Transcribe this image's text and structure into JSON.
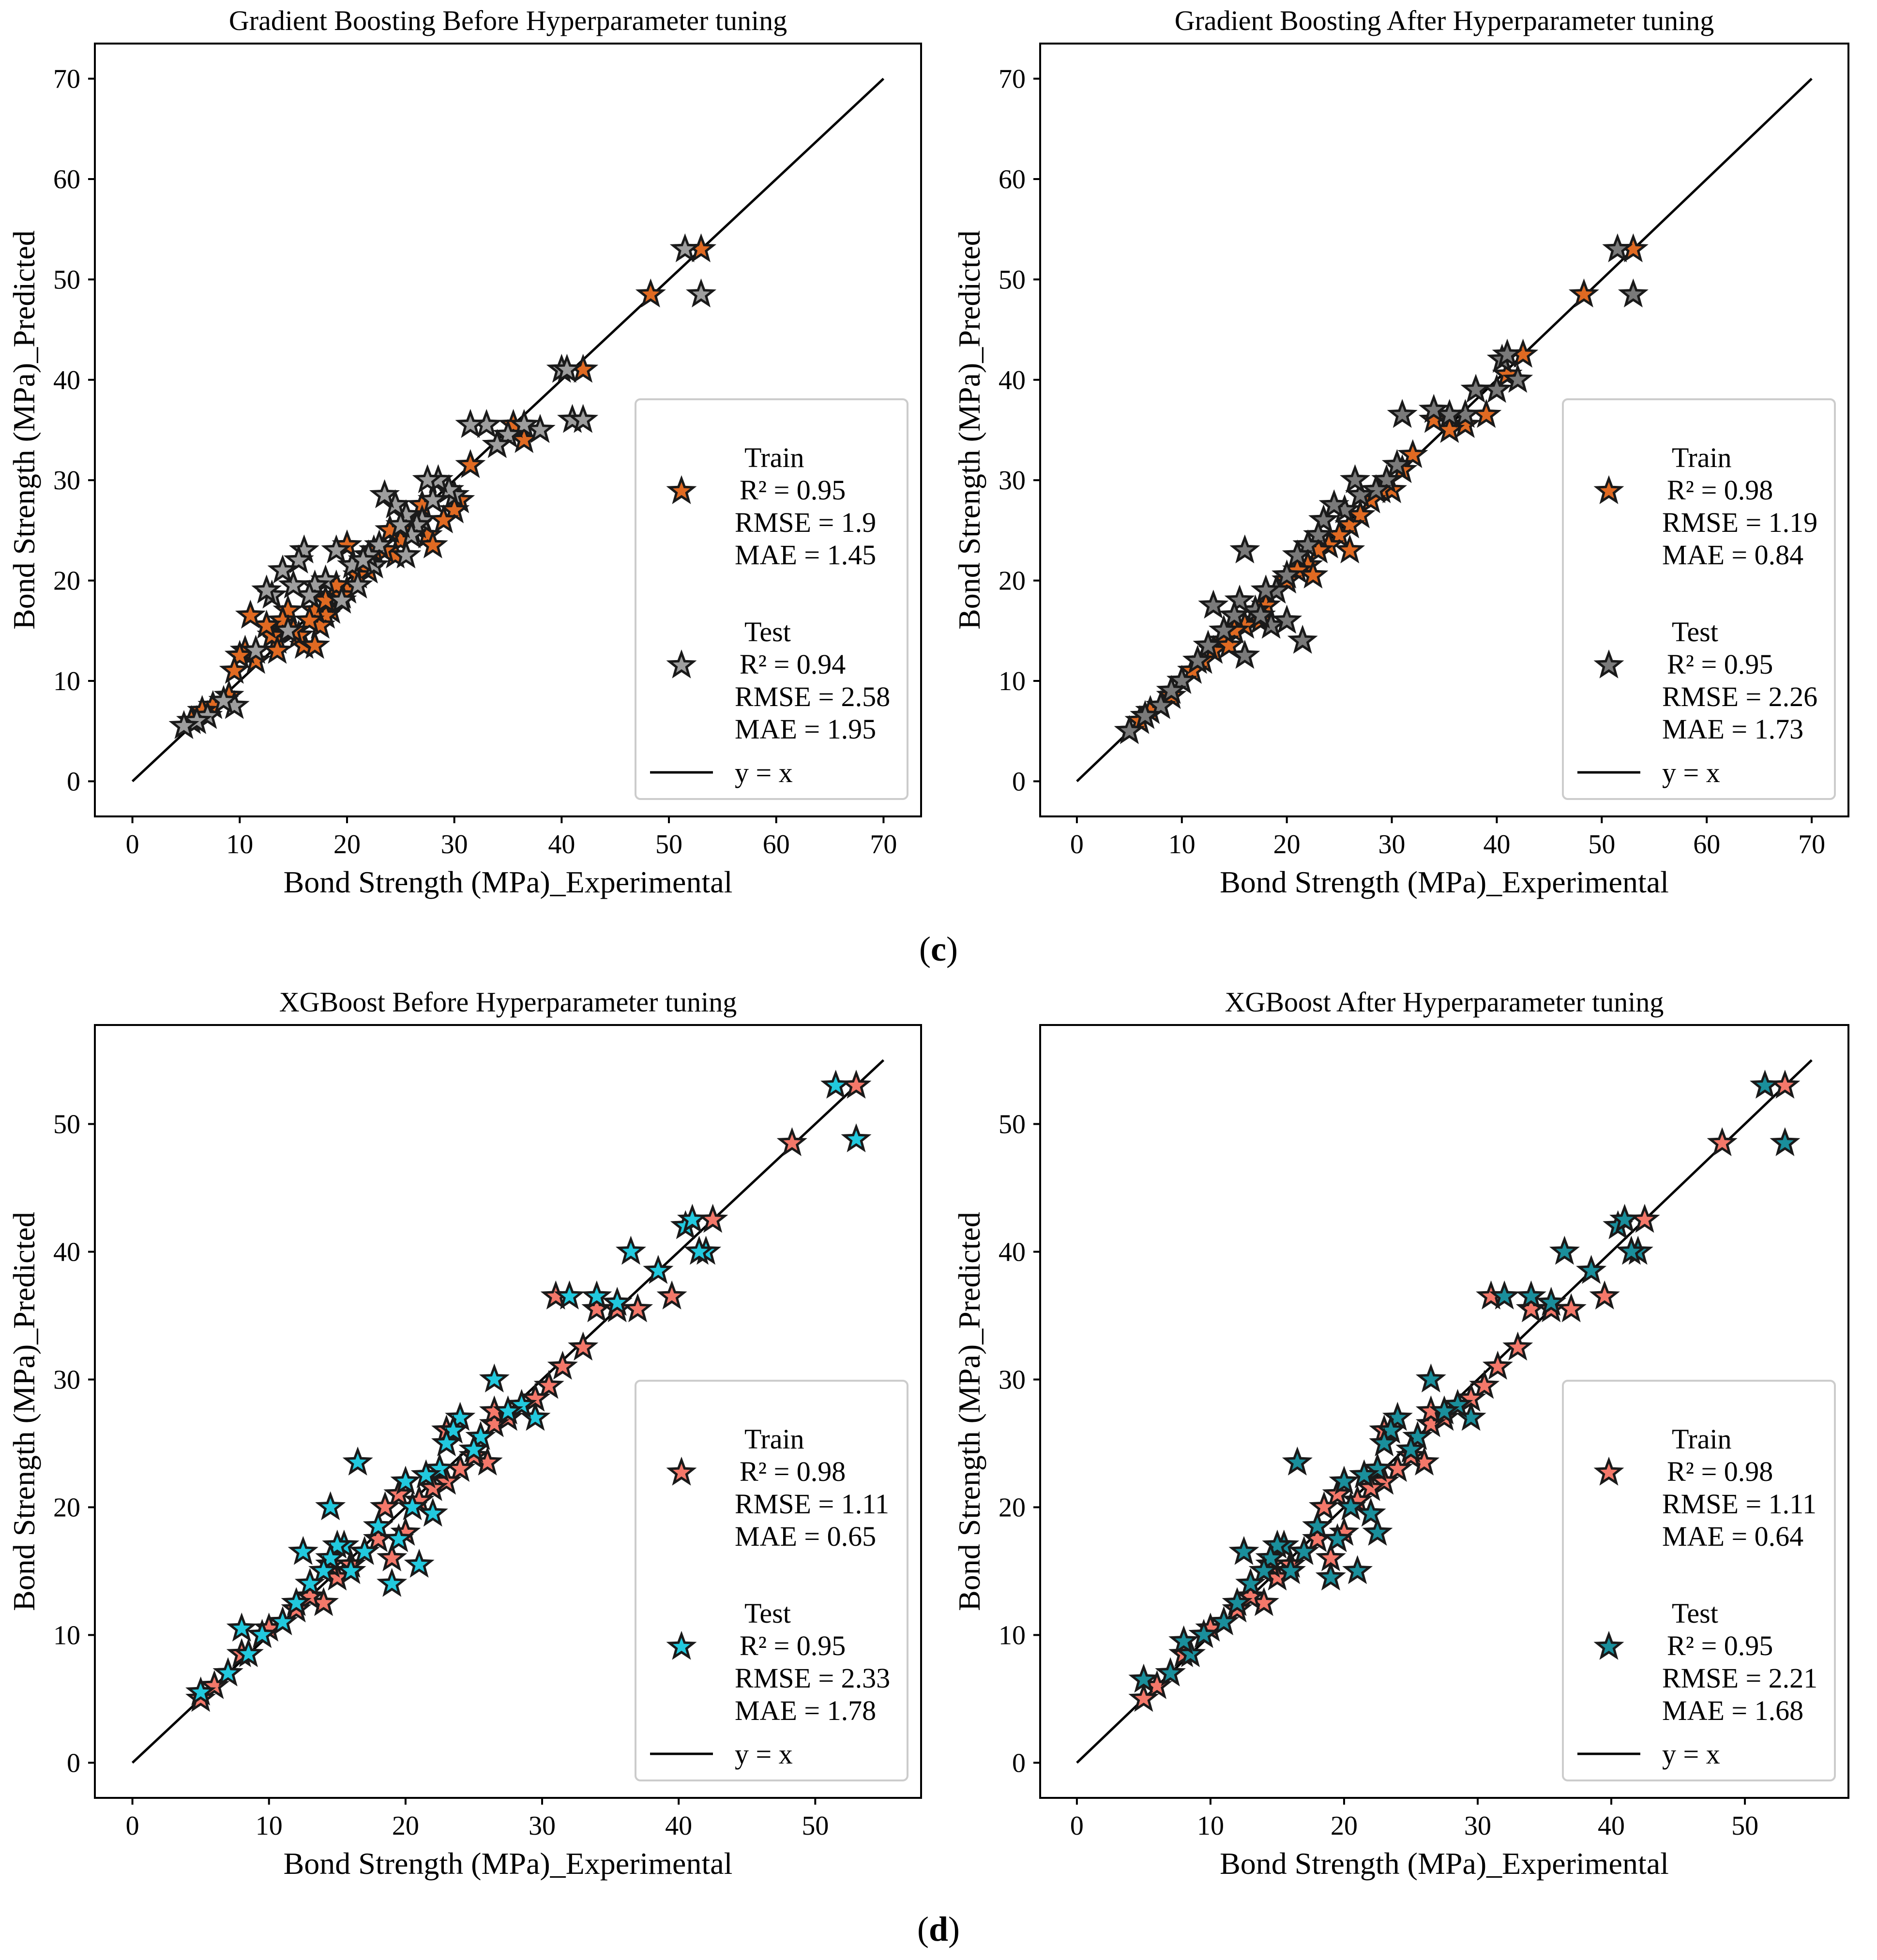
{
  "figure": {
    "captions": [
      {
        "open": "(",
        "letter": "c",
        "close": ")"
      },
      {
        "open": "(",
        "letter": "d",
        "close": ")"
      }
    ]
  },
  "chart_data": [
    {
      "type": "scatter",
      "title": "Gradient Boosting Before Hyperparameter tuning",
      "xlabel": "Bond Strength (MPa)_Experimental",
      "ylabel": "Bond Strength (MPa)_Predicted",
      "xlim": [
        -3.5,
        73.5
      ],
      "ylim": [
        -3.5,
        73.5
      ],
      "xticks": [
        0,
        10,
        20,
        30,
        40,
        50,
        60,
        70
      ],
      "yticks": [
        0,
        10,
        20,
        30,
        40,
        50,
        60,
        70
      ],
      "identity_line": {
        "from": 0,
        "to": 70,
        "label": "y = x"
      },
      "series": [
        {
          "name": "Train",
          "color": "#e06a22",
          "metrics": {
            "r2": "R² = 0.95",
            "rmse": "RMSE = 1.9",
            "mae": "MAE = 1.45"
          },
          "x": [
            48.3,
            53.0,
            42.0,
            38.0,
            36.5,
            35.5,
            34.0,
            31.5,
            30.5,
            30.0,
            29.0,
            27.5,
            27.0,
            26.0,
            25.0,
            24.5,
            23.5,
            22.5,
            22.0,
            21.0,
            20.5,
            20.0,
            19.5,
            19.0,
            18.5,
            18.0,
            17.5,
            17.0,
            16.5,
            16.0,
            15.5,
            15.0,
            14.5,
            14.0,
            13.5,
            13.0,
            12.5,
            11.5,
            11.0,
            10.5,
            10.0,
            9.5,
            9.0,
            7.5,
            6.5,
            5.5,
            28.0,
            24.0,
            17.0,
            13.5,
            20.0,
            18.0
          ],
          "y": [
            48.5,
            53.0,
            41.0,
            35.0,
            34.0,
            35.5,
            33.5,
            31.5,
            28.0,
            27.0,
            26.0,
            24.5,
            27.5,
            25.0,
            24.0,
            22.5,
            23.0,
            23.0,
            21.0,
            20.5,
            21.5,
            19.0,
            18.5,
            19.5,
            17.0,
            16.5,
            15.5,
            17.0,
            16.0,
            13.5,
            14.5,
            15.0,
            17.0,
            16.0,
            14.0,
            14.5,
            15.5,
            12.0,
            16.5,
            13.0,
            12.5,
            11.0,
            8.5,
            7.5,
            7.0,
            6.0,
            23.5,
            25.0,
            13.5,
            13.0,
            23.5,
            18.0
          ]
        },
        {
          "name": "Test",
          "color": "#9e9e9e",
          "metrics": {
            "r2": "R² = 0.94",
            "rmse": "RMSE = 2.58",
            "mae": "MAE = 1.95"
          },
          "x": [
            51.5,
            53.0,
            40.0,
            41.0,
            42.0,
            40.5,
            38.0,
            36.5,
            35.0,
            34.0,
            33.0,
            31.5,
            30.0,
            29.5,
            28.5,
            27.5,
            27.0,
            26.5,
            26.0,
            25.5,
            25.0,
            24.5,
            23.5,
            23.0,
            22.5,
            22.0,
            21.0,
            20.5,
            19.5,
            19.0,
            18.0,
            17.0,
            16.5,
            16.0,
            15.5,
            15.0,
            14.5,
            14.0,
            13.0,
            12.5,
            11.5,
            9.5,
            8.5,
            7.0,
            6.0,
            4.8,
            28.0,
            25.5,
            21.5
          ],
          "y": [
            53.0,
            48.5,
            41.0,
            36.0,
            36.0,
            41.0,
            35.0,
            35.5,
            34.5,
            33.5,
            35.5,
            35.5,
            28.5,
            29.0,
            30.0,
            30.0,
            26.0,
            25.5,
            24.5,
            26.5,
            25.5,
            27.5,
            28.5,
            23.5,
            21.5,
            22.5,
            19.5,
            21.5,
            18.0,
            23.0,
            20.0,
            19.5,
            18.5,
            23.0,
            22.0,
            19.5,
            15.0,
            21.0,
            18.5,
            19.0,
            13.0,
            7.5,
            8.0,
            6.5,
            6.0,
            5.5,
            28.0,
            22.5,
            22.0
          ]
        }
      ]
    },
    {
      "type": "scatter",
      "title": "Gradient Boosting After Hyperparameter tuning",
      "xlabel": "Bond Strength (MPa)_Experimental",
      "ylabel": "Bond Strength (MPa)_Predicted",
      "xlim": [
        -3.5,
        73.5
      ],
      "ylim": [
        -3.5,
        73.5
      ],
      "xticks": [
        0,
        10,
        20,
        30,
        40,
        50,
        60,
        70
      ],
      "yticks": [
        0,
        10,
        20,
        30,
        40,
        50,
        60,
        70
      ],
      "identity_line": {
        "from": 0,
        "to": 70,
        "label": "y = x"
      },
      "series": [
        {
          "name": "Train",
          "color": "#e06a22",
          "metrics": {
            "r2": "R² = 0.98",
            "rmse": "RMSE = 1.19",
            "mae": "MAE = 0.84"
          },
          "x": [
            48.3,
            53.0,
            42.5,
            41.0,
            39.0,
            37.0,
            35.5,
            34.0,
            32.0,
            31.0,
            30.0,
            29.0,
            28.0,
            27.0,
            26.0,
            25.0,
            24.0,
            23.0,
            22.0,
            21.0,
            20.0,
            19.0,
            18.0,
            17.0,
            16.0,
            15.0,
            14.0,
            13.0,
            12.0,
            11.0,
            10.0,
            9.0,
            8.0,
            7.0,
            6.0,
            5.0,
            26.0,
            22.5,
            17.5,
            14.5
          ],
          "y": [
            48.5,
            53.0,
            42.5,
            40.5,
            36.5,
            35.5,
            35.0,
            36.0,
            32.5,
            31.0,
            29.0,
            29.0,
            28.0,
            26.5,
            25.5,
            24.5,
            23.5,
            23.0,
            21.5,
            21.0,
            20.0,
            19.0,
            17.5,
            17.0,
            15.5,
            15.0,
            14.0,
            13.0,
            12.0,
            11.0,
            10.0,
            8.5,
            7.5,
            7.0,
            6.0,
            5.0,
            23.0,
            20.5,
            16.0,
            13.5
          ]
        },
        {
          "name": "Test",
          "color": "#7a7a7a",
          "metrics": {
            "r2": "R² = 0.95",
            "rmse": "RMSE = 2.26",
            "mae": "MAE = 1.73"
          },
          "x": [
            51.5,
            53.0,
            40.5,
            41.0,
            42.0,
            40.0,
            38.0,
            37.0,
            35.5,
            34.0,
            31.0,
            30.5,
            29.5,
            28.5,
            27.0,
            26.5,
            25.5,
            24.5,
            23.5,
            23.0,
            22.0,
            21.5,
            21.0,
            20.0,
            19.0,
            18.5,
            18.0,
            17.0,
            16.0,
            16.0,
            15.5,
            15.0,
            14.0,
            13.0,
            12.5,
            11.5,
            10.0,
            9.0,
            8.0,
            6.5,
            5.0,
            20.0,
            17.5
          ],
          "y": [
            53.0,
            48.5,
            42.0,
            42.5,
            40.0,
            39.0,
            39.0,
            36.5,
            36.5,
            37.0,
            36.5,
            31.5,
            30.0,
            29.0,
            28.5,
            30.0,
            27.0,
            27.5,
            26.0,
            24.5,
            23.5,
            14.0,
            22.5,
            20.5,
            19.0,
            15.5,
            19.0,
            17.0,
            23.0,
            12.5,
            18.0,
            16.5,
            15.0,
            17.5,
            13.5,
            12.0,
            10.0,
            9.0,
            7.5,
            6.5,
            5.0,
            16.0,
            16.5
          ]
        }
      ]
    },
    {
      "type": "scatter",
      "title": "XGBoost Before Hyperparameter tuning",
      "xlabel": "Bond Strength (MPa)_Experimental",
      "ylabel": "Bond Strength (MPa)_Predicted",
      "xlim": [
        -2.75,
        57.75
      ],
      "ylim": [
        -2.75,
        57.75
      ],
      "xticks": [
        0,
        10,
        20,
        30,
        40,
        50
      ],
      "yticks": [
        0,
        10,
        20,
        30,
        40,
        50
      ],
      "identity_line": {
        "from": 0,
        "to": 55,
        "label": "y = x"
      },
      "series": [
        {
          "name": "Train",
          "color": "#f4786a",
          "metrics": {
            "r2": "R² = 0.98",
            "rmse": "RMSE = 1.11",
            "mae": "MAE = 0.65"
          },
          "x": [
            48.3,
            53.0,
            42.5,
            39.5,
            37.0,
            35.5,
            34.0,
            33.0,
            31.5,
            30.5,
            29.5,
            28.5,
            27.5,
            26.5,
            26.0,
            25.0,
            24.0,
            23.0,
            22.0,
            21.0,
            20.0,
            19.5,
            19.0,
            18.0,
            17.0,
            16.0,
            15.0,
            14.5,
            14.0,
            13.0,
            12.0,
            11.0,
            10.0,
            9.5,
            8.0,
            7.0,
            6.0,
            5.0,
            31.0,
            26.5,
            23.0,
            18.5
          ],
          "y": [
            48.5,
            53.0,
            42.5,
            36.5,
            35.5,
            35.5,
            35.5,
            32.5,
            31.0,
            29.5,
            28.5,
            28.0,
            27.0,
            26.5,
            23.5,
            24.0,
            23.0,
            22.0,
            21.5,
            20.5,
            18.0,
            21.0,
            16.0,
            17.5,
            16.5,
            15.5,
            14.5,
            15.5,
            12.5,
            13.0,
            12.0,
            11.0,
            10.5,
            10.0,
            8.5,
            7.0,
            6.0,
            5.0,
            36.5,
            27.5,
            26.0,
            20.0
          ]
        },
        {
          "name": "Test",
          "color": "#22c9de",
          "metrics": {
            "r2": "R² = 0.95",
            "rmse": "RMSE = 2.33",
            "mae": "MAE = 1.78"
          },
          "x": [
            51.5,
            53.0,
            40.5,
            41.0,
            42.0,
            41.5,
            38.5,
            36.5,
            35.5,
            34.0,
            32.0,
            29.5,
            28.5,
            27.5,
            26.5,
            25.5,
            25.0,
            24.0,
            23.5,
            23.0,
            22.5,
            22.0,
            21.5,
            21.0,
            20.5,
            20.0,
            19.5,
            19.0,
            18.0,
            17.0,
            16.0,
            15.5,
            15.0,
            14.5,
            14.5,
            14.0,
            13.0,
            12.5,
            12.0,
            11.0,
            9.5,
            8.5,
            8.0,
            7.0,
            5.0,
            16.5
          ],
          "y": [
            53.0,
            48.8,
            42.0,
            42.5,
            40.0,
            40.0,
            38.5,
            40.0,
            36.0,
            36.5,
            36.5,
            27.0,
            28.0,
            27.5,
            30.0,
            25.5,
            24.5,
            27.0,
            26.0,
            25.0,
            23.0,
            19.5,
            22.5,
            15.5,
            20.0,
            22.0,
            17.5,
            14.0,
            18.5,
            16.5,
            15.0,
            17.0,
            17.0,
            16.0,
            20.0,
            15.0,
            14.0,
            16.5,
            12.5,
            11.0,
            10.0,
            8.5,
            10.5,
            7.0,
            5.5,
            23.5
          ]
        }
      ]
    },
    {
      "type": "scatter",
      "title": "XGBoost After Hyperparameter tuning",
      "xlabel": "Bond Strength (MPa)_Experimental",
      "ylabel": "Bond Strength (MPa)_Predicted",
      "xlim": [
        -2.75,
        57.75
      ],
      "ylim": [
        -2.75,
        57.75
      ],
      "xticks": [
        0,
        10,
        20,
        30,
        40,
        50
      ],
      "yticks": [
        0,
        10,
        20,
        30,
        40,
        50
      ],
      "identity_line": {
        "from": 0,
        "to": 55,
        "label": "y = x"
      },
      "series": [
        {
          "name": "Train",
          "color": "#f4786a",
          "metrics": {
            "r2": "R² = 0.98",
            "rmse": "RMSE = 1.11",
            "mae": "MAE = 0.64"
          },
          "x": [
            48.3,
            53.0,
            42.5,
            39.5,
            37.0,
            35.5,
            34.0,
            33.0,
            31.5,
            30.5,
            29.5,
            28.5,
            27.5,
            26.5,
            26.0,
            25.0,
            24.0,
            23.0,
            22.0,
            21.0,
            20.0,
            19.5,
            19.0,
            18.0,
            17.0,
            16.0,
            15.0,
            14.5,
            14.0,
            13.0,
            12.0,
            11.0,
            10.0,
            9.5,
            8.0,
            7.0,
            6.0,
            5.0,
            31.0,
            26.5,
            23.0,
            18.5
          ],
          "y": [
            48.5,
            53.0,
            42.5,
            36.5,
            35.5,
            35.5,
            35.5,
            32.5,
            31.0,
            29.5,
            28.5,
            28.0,
            27.0,
            26.5,
            23.5,
            24.0,
            23.0,
            22.0,
            21.5,
            20.5,
            18.0,
            21.0,
            16.0,
            17.5,
            16.5,
            15.5,
            14.5,
            15.5,
            12.5,
            13.0,
            12.0,
            11.0,
            10.5,
            10.0,
            8.5,
            7.0,
            6.0,
            5.0,
            36.5,
            27.5,
            26.0,
            20.0
          ]
        },
        {
          "name": "Test",
          "color": "#1a8f9c",
          "metrics": {
            "r2": "R² = 0.95",
            "rmse": "RMSE = 2.21",
            "mae": "MAE = 1.68"
          },
          "x": [
            51.5,
            53.0,
            40.5,
            41.0,
            42.0,
            41.5,
            38.5,
            36.5,
            35.5,
            34.0,
            32.0,
            29.5,
            28.5,
            27.5,
            26.5,
            25.5,
            25.0,
            24.0,
            23.5,
            23.0,
            22.5,
            22.0,
            21.5,
            21.0,
            20.5,
            20.0,
            19.5,
            19.0,
            18.0,
            17.0,
            16.0,
            15.5,
            15.0,
            14.5,
            14.0,
            13.0,
            12.5,
            12.0,
            11.0,
            9.5,
            8.5,
            8.0,
            7.0,
            5.0,
            16.5,
            22.5
          ],
          "y": [
            53.0,
            48.5,
            42.0,
            42.5,
            40.0,
            40.0,
            38.5,
            40.0,
            36.0,
            36.5,
            36.5,
            27.0,
            28.0,
            27.5,
            30.0,
            25.5,
            24.5,
            27.0,
            26.0,
            25.0,
            23.0,
            19.5,
            22.5,
            15.0,
            20.0,
            22.0,
            17.5,
            14.5,
            18.5,
            16.5,
            15.0,
            17.0,
            17.0,
            16.0,
            15.0,
            14.0,
            16.5,
            12.5,
            11.0,
            10.0,
            8.5,
            9.5,
            7.0,
            6.5,
            23.5,
            18.0
          ]
        }
      ]
    }
  ]
}
